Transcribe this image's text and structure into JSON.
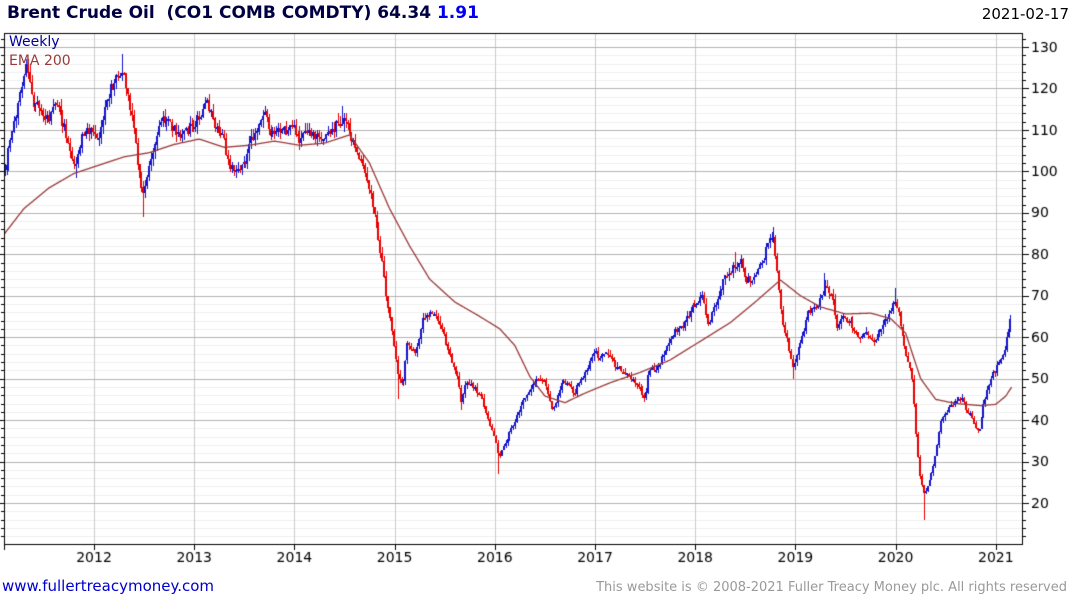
{
  "header": {
    "title": "Brent Crude Oil  (CO1 COMB COMDTY)",
    "last_price": "64.34",
    "change": "1.91",
    "date": "2021-02-17"
  },
  "legend": {
    "timeframe": "Weekly",
    "overlay": "EMA 200"
  },
  "footer": {
    "website": "www.fullertreacymoney.com",
    "copyright": "This website is © 2008-2021 Fuller Treacy Money plc. All rights reserved"
  },
  "colors": {
    "up_candle": "#1414cc",
    "down_candle": "#e80000",
    "ema_line": "#993a3a",
    "grid_major": "#b3b3b3",
    "grid_minor": "#f0f0f0",
    "grid_year": "#cccccc",
    "axis": "#000000",
    "tick_text": "#000000"
  },
  "chart_data": {
    "type": "candlestick",
    "timeframe": "weekly",
    "title": "Brent Crude Oil (CO1 COMB COMDTY)",
    "last_close": 64.34,
    "last_change": 1.91,
    "last_date": "2021-02-17",
    "y_ticks": [
      130,
      120,
      110,
      100,
      90,
      80,
      70,
      60,
      50,
      40,
      30,
      20
    ],
    "y_minor_step": 2,
    "y_range": [
      9.9,
      133.4
    ],
    "x_ticks": [
      "2012",
      "2013",
      "2014",
      "2015",
      "2016",
      "2017",
      "2018",
      "2019",
      "2020",
      "2021"
    ],
    "x_range": [
      2011.1,
      2021.26
    ],
    "legend_position": "top-left",
    "grid": true,
    "monthly_closes": [
      [
        2011.108,
        100
      ],
      [
        2011.14,
        104
      ],
      [
        2011.21,
        112
      ],
      [
        2011.29,
        123
      ],
      [
        2011.33,
        126
      ],
      [
        2011.38,
        117
      ],
      [
        2011.46,
        115
      ],
      [
        2011.54,
        112
      ],
      [
        2011.63,
        117
      ],
      [
        2011.71,
        110
      ],
      [
        2011.77,
        105
      ],
      [
        2011.81,
        101
      ],
      [
        2011.88,
        109
      ],
      [
        2011.96,
        110
      ],
      [
        2012.04,
        107
      ],
      [
        2012.08,
        111
      ],
      [
        2012.13,
        118
      ],
      [
        2012.21,
        122
      ],
      [
        2012.29,
        124
      ],
      [
        2012.33,
        120
      ],
      [
        2012.38,
        113
      ],
      [
        2012.42,
        106
      ],
      [
        2012.46,
        97
      ],
      [
        2012.5,
        95
      ],
      [
        2012.58,
        104
      ],
      [
        2012.67,
        113
      ],
      [
        2012.75,
        112
      ],
      [
        2012.83,
        109
      ],
      [
        2012.92,
        110
      ],
      [
        2013.0,
        111
      ],
      [
        2013.04,
        113
      ],
      [
        2013.13,
        116
      ],
      [
        2013.21,
        111
      ],
      [
        2013.29,
        109
      ],
      [
        2013.33,
        102
      ],
      [
        2013.42,
        101
      ],
      [
        2013.5,
        102
      ],
      [
        2013.58,
        108
      ],
      [
        2013.67,
        112
      ],
      [
        2013.71,
        115
      ],
      [
        2013.75,
        108
      ],
      [
        2013.83,
        109
      ],
      [
        2013.92,
        110
      ],
      [
        2014.0,
        111
      ],
      [
        2014.04,
        107
      ],
      [
        2014.13,
        109
      ],
      [
        2014.21,
        108
      ],
      [
        2014.29,
        108
      ],
      [
        2014.38,
        110
      ],
      [
        2014.46,
        112
      ],
      [
        2014.5,
        113
      ],
      [
        2014.58,
        107
      ],
      [
        2014.67,
        103
      ],
      [
        2014.75,
        96
      ],
      [
        2014.83,
        86
      ],
      [
        2014.92,
        70
      ],
      [
        2015.0,
        57
      ],
      [
        2015.04,
        50
      ],
      [
        2015.08,
        48
      ],
      [
        2015.13,
        59
      ],
      [
        2015.21,
        56
      ],
      [
        2015.29,
        65
      ],
      [
        2015.38,
        66
      ],
      [
        2015.46,
        63
      ],
      [
        2015.54,
        56
      ],
      [
        2015.63,
        50
      ],
      [
        2015.67,
        44
      ],
      [
        2015.71,
        49
      ],
      [
        2015.79,
        48
      ],
      [
        2015.88,
        45
      ],
      [
        2015.96,
        38
      ],
      [
        2016.0,
        36
      ],
      [
        2016.04,
        31
      ],
      [
        2016.08,
        33
      ],
      [
        2016.13,
        36
      ],
      [
        2016.21,
        40
      ],
      [
        2016.29,
        45
      ],
      [
        2016.38,
        49
      ],
      [
        2016.46,
        50
      ],
      [
        2016.5,
        49
      ],
      [
        2016.54,
        46
      ],
      [
        2016.58,
        42
      ],
      [
        2016.63,
        46
      ],
      [
        2016.67,
        49
      ],
      [
        2016.75,
        49
      ],
      [
        2016.79,
        46
      ],
      [
        2016.83,
        49
      ],
      [
        2016.92,
        52
      ],
      [
        2017.0,
        57
      ],
      [
        2017.04,
        55
      ],
      [
        2017.13,
        56
      ],
      [
        2017.21,
        53
      ],
      [
        2017.29,
        52
      ],
      [
        2017.38,
        50
      ],
      [
        2017.46,
        47
      ],
      [
        2017.5,
        45
      ],
      [
        2017.54,
        52
      ],
      [
        2017.63,
        53
      ],
      [
        2017.71,
        57
      ],
      [
        2017.79,
        61
      ],
      [
        2017.88,
        63
      ],
      [
        2017.96,
        67
      ],
      [
        2018.04,
        69
      ],
      [
        2018.08,
        70
      ],
      [
        2018.13,
        63
      ],
      [
        2018.21,
        69
      ],
      [
        2018.29,
        74
      ],
      [
        2018.38,
        77
      ],
      [
        2018.46,
        78
      ],
      [
        2018.5,
        74
      ],
      [
        2018.58,
        74
      ],
      [
        2018.67,
        78
      ],
      [
        2018.73,
        83
      ],
      [
        2018.78,
        84
      ],
      [
        2018.83,
        73
      ],
      [
        2018.88,
        63
      ],
      [
        2018.92,
        59
      ],
      [
        2018.98,
        52
      ],
      [
        2019.04,
        58
      ],
      [
        2019.08,
        61
      ],
      [
        2019.13,
        66
      ],
      [
        2019.21,
        67
      ],
      [
        2019.29,
        72
      ],
      [
        2019.33,
        72
      ],
      [
        2019.38,
        68
      ],
      [
        2019.42,
        62
      ],
      [
        2019.46,
        65
      ],
      [
        2019.54,
        64
      ],
      [
        2019.63,
        60
      ],
      [
        2019.71,
        61
      ],
      [
        2019.79,
        59
      ],
      [
        2019.88,
        63
      ],
      [
        2019.96,
        67
      ],
      [
        2020.0,
        69
      ],
      [
        2020.04,
        65
      ],
      [
        2020.08,
        58
      ],
      [
        2020.13,
        54
      ],
      [
        2020.17,
        50
      ],
      [
        2020.21,
        34
      ],
      [
        2020.25,
        25
      ],
      [
        2020.29,
        22
      ],
      [
        2020.33,
        25
      ],
      [
        2020.38,
        29
      ],
      [
        2020.42,
        35
      ],
      [
        2020.46,
        40
      ],
      [
        2020.5,
        42
      ],
      [
        2020.58,
        44
      ],
      [
        2020.63,
        45
      ],
      [
        2020.67,
        45
      ],
      [
        2020.71,
        42
      ],
      [
        2020.75,
        41
      ],
      [
        2020.79,
        39
      ],
      [
        2020.83,
        37
      ],
      [
        2020.88,
        44
      ],
      [
        2020.92,
        48
      ],
      [
        2020.96,
        51
      ],
      [
        2021.0,
        52
      ],
      [
        2021.04,
        55
      ],
      [
        2021.08,
        56
      ],
      [
        2021.1,
        59
      ],
      [
        2021.13,
        62
      ],
      [
        2021.155,
        64.34
      ]
    ],
    "spikes": [
      {
        "t": 2011.33,
        "high": 127.0
      },
      {
        "t": 2011.82,
        "low": 98.5
      },
      {
        "t": 2012.29,
        "high": 128.4
      },
      {
        "t": 2012.5,
        "low": 89.0
      },
      {
        "t": 2014.47,
        "high": 115.7
      },
      {
        "t": 2015.04,
        "low": 45.2
      },
      {
        "t": 2015.66,
        "low": 42.5
      },
      {
        "t": 2016.04,
        "low": 27.1
      },
      {
        "t": 2017.49,
        "low": 44.4
      },
      {
        "t": 2018.4,
        "high": 80.5
      },
      {
        "t": 2018.78,
        "high": 86.7
      },
      {
        "t": 2018.98,
        "low": 49.9
      },
      {
        "t": 2019.29,
        "high": 75.6
      },
      {
        "t": 2020.0,
        "high": 71.8
      },
      {
        "t": 2020.29,
        "low": 16.0
      },
      {
        "t": 2021.155,
        "high": 65.4
      }
    ],
    "ema_points": [
      [
        2011.108,
        85
      ],
      [
        2011.3,
        91
      ],
      [
        2011.55,
        96
      ],
      [
        2011.8,
        99.5
      ],
      [
        2012.05,
        101.5
      ],
      [
        2012.3,
        103.5
      ],
      [
        2012.55,
        104.5
      ],
      [
        2012.8,
        106.5
      ],
      [
        2013.05,
        107.8
      ],
      [
        2013.3,
        105.8
      ],
      [
        2013.55,
        106.3
      ],
      [
        2013.8,
        107.3
      ],
      [
        2014.05,
        106.3
      ],
      [
        2014.3,
        106.8
      ],
      [
        2014.55,
        108.8
      ],
      [
        2014.75,
        102
      ],
      [
        2014.95,
        91
      ],
      [
        2015.15,
        82
      ],
      [
        2015.35,
        74
      ],
      [
        2015.6,
        68.5
      ],
      [
        2015.85,
        65
      ],
      [
        2016.05,
        62
      ],
      [
        2016.2,
        58
      ],
      [
        2016.35,
        50.5
      ],
      [
        2016.5,
        45.8
      ],
      [
        2016.7,
        44.2
      ],
      [
        2016.9,
        46.5
      ],
      [
        2017.15,
        49
      ],
      [
        2017.45,
        51.5
      ],
      [
        2017.75,
        54.5
      ],
      [
        2018.05,
        59
      ],
      [
        2018.35,
        63.5
      ],
      [
        2018.6,
        68.5
      ],
      [
        2018.85,
        73.8
      ],
      [
        2019.05,
        70
      ],
      [
        2019.25,
        67.3
      ],
      [
        2019.5,
        65.6
      ],
      [
        2019.75,
        65.8
      ],
      [
        2019.95,
        64.5
      ],
      [
        2020.1,
        61
      ],
      [
        2020.25,
        50
      ],
      [
        2020.4,
        45
      ],
      [
        2020.6,
        44
      ],
      [
        2020.85,
        43.5
      ],
      [
        2021.0,
        43.8
      ],
      [
        2021.1,
        45.8
      ],
      [
        2021.18,
        48.8
      ]
    ]
  }
}
